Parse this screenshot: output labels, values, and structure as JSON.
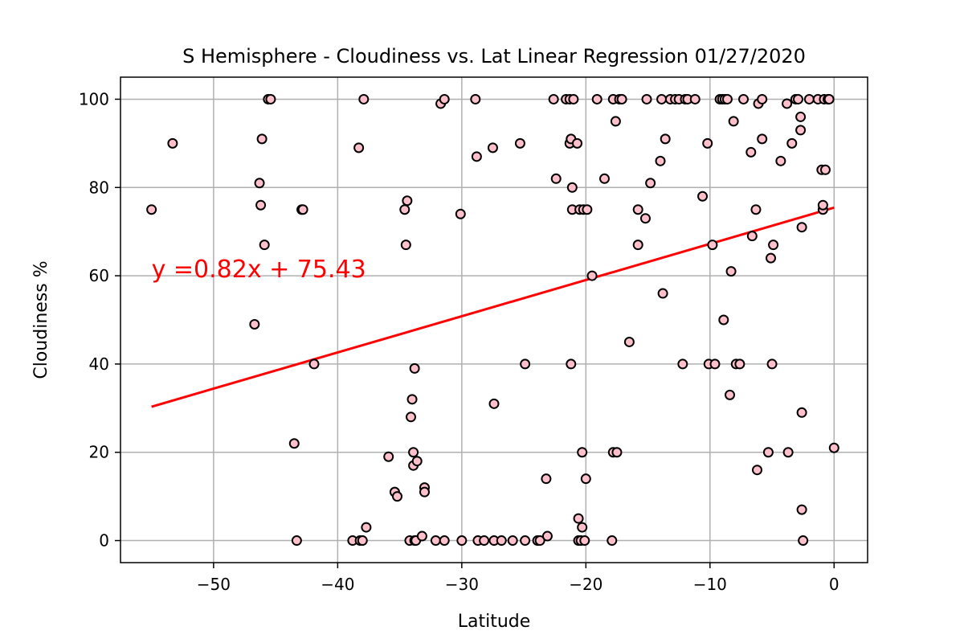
{
  "chart_data": {
    "type": "scatter",
    "title": "S Hemisphere - Cloudiness vs. Lat Linear Regression 01/27/2020",
    "xlabel": "Latitude",
    "ylabel": "Cloudiness %",
    "xlim": [
      -57.5,
      2.7
    ],
    "ylim": [
      -5,
      105
    ],
    "xticks": [
      -50,
      -40,
      -30,
      -20,
      -10,
      0
    ],
    "xtick_labels": [
      "−50",
      "−40",
      "−30",
      "−20",
      "−10",
      "0"
    ],
    "yticks": [
      0,
      20,
      40,
      60,
      80,
      100
    ],
    "ytick_labels": [
      "0",
      "20",
      "40",
      "60",
      "80",
      "100"
    ],
    "grid": true,
    "colors": {
      "marker_fill": "#ffc0cb",
      "marker_edge": "#000000",
      "regression_line": "#ff0000",
      "grid": "#b0b0b0"
    },
    "regression": {
      "equation_text": "y =0.82x + 75.43",
      "slope": 0.82,
      "intercept": 75.43,
      "x_range": [
        -55,
        0
      ],
      "label_x": -55.0,
      "label_y": 60
    },
    "points": [
      [
        -55.0,
        75
      ],
      [
        -53.3,
        90
      ],
      [
        -46.7,
        49
      ],
      [
        -46.3,
        81
      ],
      [
        -46.2,
        76
      ],
      [
        -46.1,
        91
      ],
      [
        -45.9,
        67
      ],
      [
        -45.6,
        100
      ],
      [
        -45.4,
        100
      ],
      [
        -43.5,
        22
      ],
      [
        -43.3,
        0
      ],
      [
        -42.9,
        75
      ],
      [
        -42.8,
        75
      ],
      [
        -41.9,
        40
      ],
      [
        -38.8,
        0
      ],
      [
        -38.3,
        89
      ],
      [
        -38.2,
        0
      ],
      [
        -38.0,
        0
      ],
      [
        -37.9,
        100
      ],
      [
        -37.7,
        3
      ],
      [
        -35.9,
        19
      ],
      [
        -35.4,
        11
      ],
      [
        -35.2,
        10
      ],
      [
        -34.6,
        75
      ],
      [
        -34.5,
        67
      ],
      [
        -34.4,
        77
      ],
      [
        -34.2,
        0
      ],
      [
        -34.1,
        28
      ],
      [
        -34.0,
        32
      ],
      [
        -33.9,
        20
      ],
      [
        -33.9,
        17
      ],
      [
        -33.8,
        0
      ],
      [
        -33.8,
        39
      ],
      [
        -33.7,
        0
      ],
      [
        -33.6,
        18
      ],
      [
        -33.2,
        1
      ],
      [
        -33.0,
        12
      ],
      [
        -33.0,
        11
      ],
      [
        -32.1,
        0
      ],
      [
        -31.7,
        99
      ],
      [
        -31.4,
        100
      ],
      [
        -31.4,
        0
      ],
      [
        -30.1,
        74
      ],
      [
        -30.0,
        0
      ],
      [
        -28.9,
        100
      ],
      [
        -28.8,
        87
      ],
      [
        -28.7,
        0
      ],
      [
        -28.2,
        0
      ],
      [
        -27.5,
        89
      ],
      [
        -27.4,
        31
      ],
      [
        -27.4,
        0
      ],
      [
        -26.8,
        0
      ],
      [
        -25.9,
        0
      ],
      [
        -25.3,
        90
      ],
      [
        -24.9,
        40
      ],
      [
        -24.9,
        0
      ],
      [
        -23.9,
        0
      ],
      [
        -23.7,
        0
      ],
      [
        -23.2,
        14
      ],
      [
        -23.1,
        1
      ],
      [
        -22.6,
        100
      ],
      [
        -22.4,
        82
      ],
      [
        -21.6,
        100
      ],
      [
        -21.3,
        100
      ],
      [
        -21.3,
        90
      ],
      [
        -21.2,
        40
      ],
      [
        -21.2,
        91
      ],
      [
        -21.1,
        80
      ],
      [
        -21.1,
        75
      ],
      [
        -21.0,
        100
      ],
      [
        -20.7,
        90
      ],
      [
        -20.6,
        0
      ],
      [
        -20.6,
        5
      ],
      [
        -20.5,
        75
      ],
      [
        -20.4,
        0
      ],
      [
        -20.3,
        20
      ],
      [
        -20.3,
        3
      ],
      [
        -20.2,
        75
      ],
      [
        -20.1,
        0
      ],
      [
        -20.0,
        14
      ],
      [
        -19.9,
        75
      ],
      [
        -19.5,
        60
      ],
      [
        -19.1,
        100
      ],
      [
        -18.5,
        82
      ],
      [
        -17.9,
        0
      ],
      [
        -17.8,
        20
      ],
      [
        -17.8,
        100
      ],
      [
        -17.6,
        95
      ],
      [
        -17.5,
        20
      ],
      [
        -17.3,
        100
      ],
      [
        -17.1,
        100
      ],
      [
        -16.5,
        45
      ],
      [
        -15.8,
        67
      ],
      [
        -15.8,
        75
      ],
      [
        -15.2,
        73
      ],
      [
        -15.1,
        100
      ],
      [
        -14.8,
        81
      ],
      [
        -14.0,
        86
      ],
      [
        -13.9,
        100
      ],
      [
        -13.8,
        56
      ],
      [
        -13.6,
        91
      ],
      [
        -13.2,
        100
      ],
      [
        -12.8,
        100
      ],
      [
        -12.5,
        100
      ],
      [
        -12.2,
        40
      ],
      [
        -12.0,
        100
      ],
      [
        -11.8,
        100
      ],
      [
        -11.2,
        100
      ],
      [
        -10.6,
        78
      ],
      [
        -10.2,
        90
      ],
      [
        -10.1,
        40
      ],
      [
        -9.8,
        67
      ],
      [
        -9.6,
        40
      ],
      [
        -9.2,
        100
      ],
      [
        -9.0,
        100
      ],
      [
        -8.9,
        50
      ],
      [
        -8.8,
        100
      ],
      [
        -8.6,
        100
      ],
      [
        -8.4,
        33
      ],
      [
        -8.3,
        61
      ],
      [
        -8.1,
        95
      ],
      [
        -7.9,
        40
      ],
      [
        -7.6,
        40
      ],
      [
        -7.3,
        100
      ],
      [
        -6.7,
        88
      ],
      [
        -6.6,
        69
      ],
      [
        -6.3,
        75
      ],
      [
        -6.2,
        16
      ],
      [
        -6.1,
        99
      ],
      [
        -5.8,
        91
      ],
      [
        -5.8,
        100
      ],
      [
        -5.3,
        20
      ],
      [
        -5.1,
        64
      ],
      [
        -5.0,
        40
      ],
      [
        -4.9,
        67
      ],
      [
        -4.3,
        86
      ],
      [
        -3.8,
        99
      ],
      [
        -3.7,
        20
      ],
      [
        -3.4,
        90
      ],
      [
        -3.1,
        100
      ],
      [
        -2.9,
        100
      ],
      [
        -2.7,
        96
      ],
      [
        -2.7,
        93
      ],
      [
        -2.6,
        71
      ],
      [
        -2.6,
        29
      ],
      [
        -2.6,
        7
      ],
      [
        -2.5,
        0
      ],
      [
        -2.0,
        100
      ],
      [
        -1.3,
        100
      ],
      [
        -1.0,
        84
      ],
      [
        -0.9,
        75
      ],
      [
        -0.9,
        76
      ],
      [
        -0.8,
        100
      ],
      [
        -0.7,
        84
      ],
      [
        -0.5,
        100
      ],
      [
        -0.4,
        100
      ],
      [
        0.0,
        21
      ]
    ]
  }
}
